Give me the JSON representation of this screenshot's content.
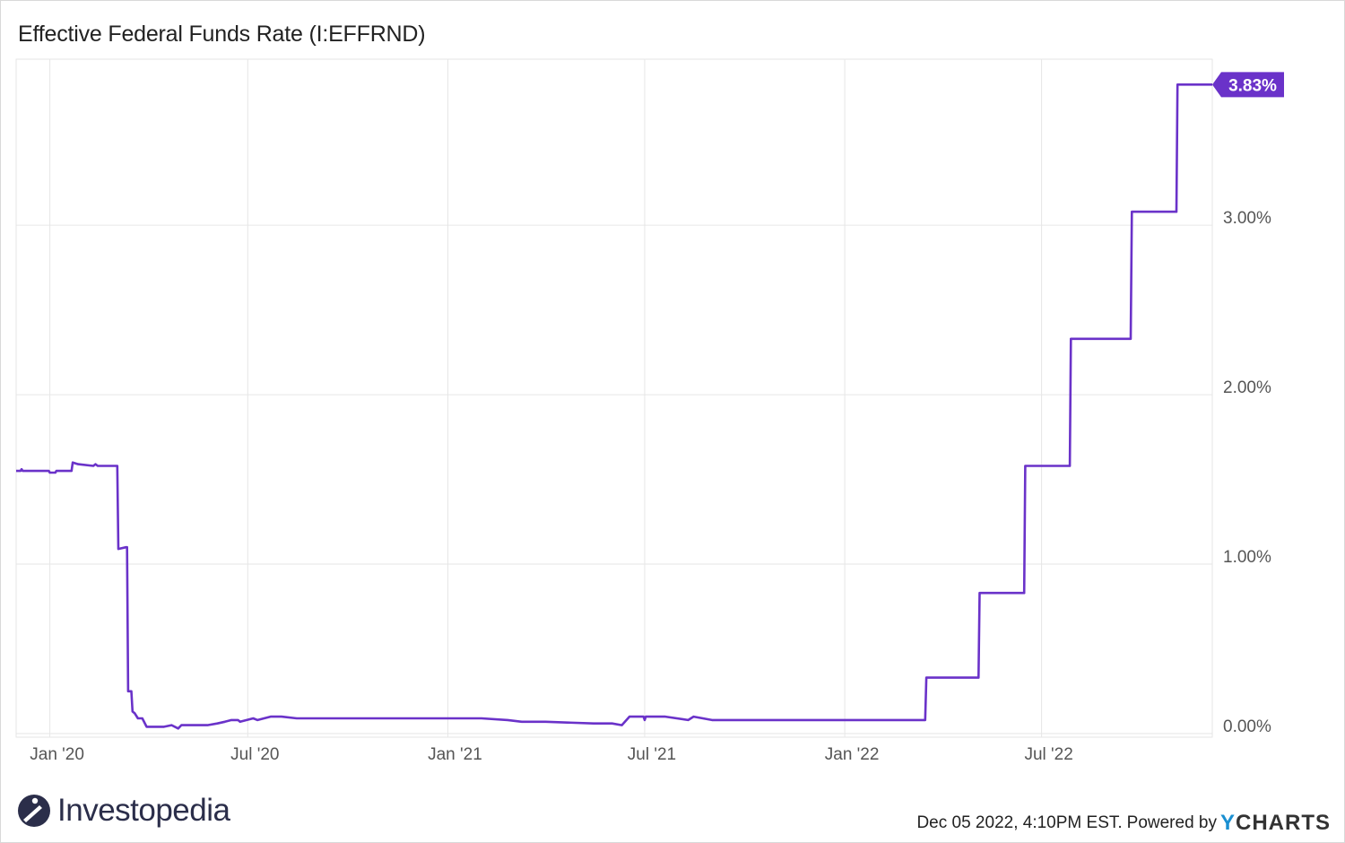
{
  "title": "Effective Federal Funds Rate (I:EFFRND)",
  "brand": {
    "name": "Investopedia",
    "icon": "investopedia-logo-icon"
  },
  "footer": {
    "timestamp": "Dec 05 2022, 4:10PM EST.",
    "powered_by": "Powered by",
    "provider": "YCHARTS"
  },
  "colors": {
    "line": "#6a32c9",
    "grid": "#e6e6e6",
    "axis_text": "#555555"
  },
  "chart_data": {
    "type": "line",
    "title": "Effective Federal Funds Rate (I:EFFRND)",
    "xlabel": "",
    "ylabel": "",
    "x_tick_labels": [
      "Jan '20",
      "Jul '20",
      "Jan '21",
      "Jul '21",
      "Jan '22",
      "Jul '22"
    ],
    "x_ticks": [
      "2020-01-01",
      "2020-07-01",
      "2021-01-01",
      "2021-07-01",
      "2022-01-01",
      "2022-07-01"
    ],
    "y_tick_labels": [
      "0.00%",
      "1.00%",
      "2.00%",
      "3.00%"
    ],
    "y_ticks": [
      0,
      1,
      2,
      3
    ],
    "xlim": [
      "2019-12-01",
      "2022-12-05"
    ],
    "ylim": [
      0,
      3.98
    ],
    "grid": true,
    "last_value_label": "3.83%",
    "series": [
      {
        "points": [
          [
            "2019-12-01",
            1.55
          ],
          [
            "2019-12-05",
            1.55
          ],
          [
            "2019-12-06",
            1.56
          ],
          [
            "2019-12-07",
            1.55
          ],
          [
            "2019-12-31",
            1.55
          ],
          [
            "2020-01-01",
            1.54
          ],
          [
            "2020-01-06",
            1.54
          ],
          [
            "2020-01-07",
            1.55
          ],
          [
            "2020-01-21",
            1.55
          ],
          [
            "2020-01-22",
            1.6
          ],
          [
            "2020-01-27",
            1.59
          ],
          [
            "2020-02-10",
            1.58
          ],
          [
            "2020-02-12",
            1.59
          ],
          [
            "2020-02-14",
            1.58
          ],
          [
            "2020-03-03",
            1.58
          ],
          [
            "2020-03-04",
            1.09
          ],
          [
            "2020-03-11",
            1.1
          ],
          [
            "2020-03-12",
            1.1
          ],
          [
            "2020-03-13",
            0.25
          ],
          [
            "2020-03-16",
            0.25
          ],
          [
            "2020-03-17",
            0.13
          ],
          [
            "2020-03-19",
            0.12
          ],
          [
            "2020-03-22",
            0.09
          ],
          [
            "2020-03-26",
            0.09
          ],
          [
            "2020-03-30",
            0.04
          ],
          [
            "2020-04-15",
            0.04
          ],
          [
            "2020-04-22",
            0.05
          ],
          [
            "2020-04-28",
            0.03
          ],
          [
            "2020-05-01",
            0.05
          ],
          [
            "2020-05-25",
            0.05
          ],
          [
            "2020-06-03",
            0.06
          ],
          [
            "2020-06-10",
            0.07
          ],
          [
            "2020-06-16",
            0.08
          ],
          [
            "2020-06-22",
            0.08
          ],
          [
            "2020-06-24",
            0.07
          ],
          [
            "2020-07-06",
            0.09
          ],
          [
            "2020-07-10",
            0.08
          ],
          [
            "2020-07-22",
            0.1
          ],
          [
            "2020-08-01",
            0.1
          ],
          [
            "2020-08-15",
            0.09
          ],
          [
            "2020-09-20",
            0.09
          ],
          [
            "2020-12-31",
            0.09
          ],
          [
            "2021-01-10",
            0.09
          ],
          [
            "2021-02-01",
            0.09
          ],
          [
            "2021-02-25",
            0.08
          ],
          [
            "2021-03-10",
            0.07
          ],
          [
            "2021-04-01",
            0.07
          ],
          [
            "2021-05-15",
            0.06
          ],
          [
            "2021-06-01",
            0.06
          ],
          [
            "2021-06-10",
            0.05
          ],
          [
            "2021-06-17",
            0.1
          ],
          [
            "2021-06-30",
            0.1
          ],
          [
            "2021-07-01",
            0.08
          ],
          [
            "2021-07-02",
            0.1
          ],
          [
            "2021-07-20",
            0.1
          ],
          [
            "2021-08-10",
            0.08
          ],
          [
            "2021-08-15",
            0.1
          ],
          [
            "2021-09-01",
            0.08
          ],
          [
            "2021-12-31",
            0.08
          ],
          [
            "2022-03-16",
            0.08
          ],
          [
            "2022-03-17",
            0.33
          ],
          [
            "2022-05-04",
            0.33
          ],
          [
            "2022-05-05",
            0.83
          ],
          [
            "2022-06-15",
            0.83
          ],
          [
            "2022-06-16",
            1.58
          ],
          [
            "2022-07-27",
            1.58
          ],
          [
            "2022-07-28",
            2.33
          ],
          [
            "2022-09-21",
            2.33
          ],
          [
            "2022-09-22",
            3.08
          ],
          [
            "2022-11-02",
            3.08
          ],
          [
            "2022-11-03",
            3.83
          ],
          [
            "2022-12-05",
            3.83
          ]
        ]
      }
    ]
  }
}
